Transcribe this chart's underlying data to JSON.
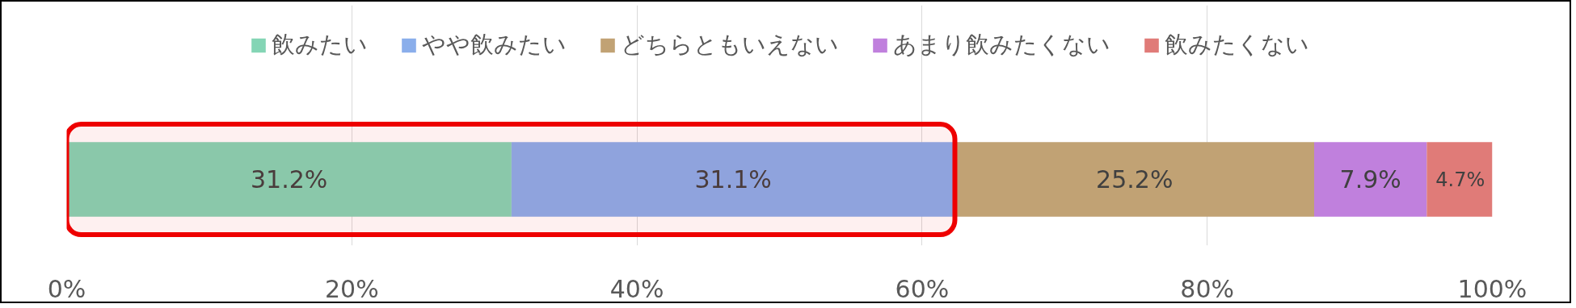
{
  "chart_data": {
    "type": "bar",
    "orientation": "horizontal",
    "stacked": true,
    "categories": [
      null
    ],
    "series": [
      {
        "name": "飲みたい",
        "color": "#84d5b5",
        "values": [
          31.2
        ],
        "value_labels": [
          "31.2%"
        ]
      },
      {
        "name": "やや飲みたい",
        "color": "#8aaeeb",
        "values": [
          31.1
        ],
        "value_labels": [
          "31.1%"
        ]
      },
      {
        "name": "どちらともいえない",
        "color": "#c1a274",
        "values": [
          25.2
        ],
        "value_labels": [
          "25.2%"
        ]
      },
      {
        "name": "あまり飲みたくない",
        "color": "#c080dd",
        "values": [
          7.9
        ],
        "value_labels": [
          "7.9%"
        ]
      },
      {
        "name": "飲みたくない",
        "color": "#e07b78",
        "values": [
          4.7
        ],
        "value_labels": [
          "4.7%"
        ]
      }
    ],
    "xlim": [
      0,
      100
    ],
    "xticks": [
      {
        "value": 0,
        "label": "0%"
      },
      {
        "value": 20,
        "label": "20%"
      },
      {
        "value": 40,
        "label": "40%"
      },
      {
        "value": 60,
        "label": "60%"
      },
      {
        "value": 80,
        "label": "80%"
      },
      {
        "value": 100,
        "label": "100%"
      }
    ],
    "grid": "x",
    "legend": "top",
    "bands": [
      {
        "axis": "x",
        "from": 0,
        "to": 62.3,
        "color": "#ee0000"
      }
    ]
  }
}
